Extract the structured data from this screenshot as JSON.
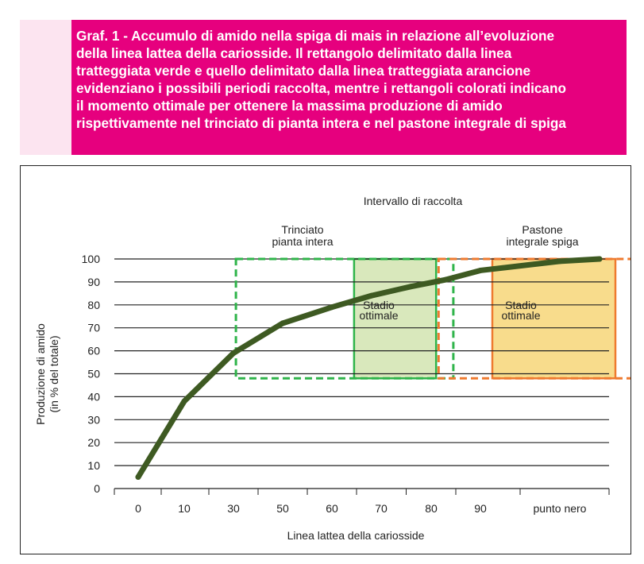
{
  "caption": {
    "text": "Graf. 1 - Accumulo di amido nella spiga di mais in relazione all’evoluzione\ndella linea lattea della cariosside. Il rettangolo delimitato dalla linea\ntratteggiata verde e quello delimitato dalla linea tratteggiata arancione\nevidenziano i possibili periodi raccolta, mentre i rettangoli colorati indicano\nil momento ottimale per ottenere la massima produzione di amido\nrispettivamente nel trinciato di pianta intera e nel pastone integrale di spiga"
  },
  "chart_data": {
    "type": "line",
    "title": "",
    "xlabel": "Linea lattea della cariosside",
    "ylabel_lines": [
      "Produzione di amido",
      "(in % del totale)"
    ],
    "x_categories": [
      "0",
      "10",
      "30",
      "50",
      "60",
      "70",
      "80",
      "90",
      "punto nero"
    ],
    "ylim": [
      0,
      100
    ],
    "y_ticks": [
      0,
      10,
      20,
      30,
      40,
      50,
      60,
      70,
      80,
      90,
      100
    ],
    "grid": "horizontal",
    "series": [
      {
        "color": "#3e5a22",
        "points": [
          {
            "x": 0,
            "y": 5
          },
          {
            "x": 1,
            "y": 38
          },
          {
            "x": 2,
            "y": 59
          },
          {
            "x": 3,
            "y": 72
          },
          {
            "x": 4,
            "y": 79
          },
          {
            "x": 4.8,
            "y": 84
          },
          {
            "x": 5.6,
            "y": 88
          },
          {
            "x": 6.3,
            "y": 91
          },
          {
            "x": 7,
            "y": 95
          },
          {
            "x": 8,
            "y": 99
          },
          {
            "x": 8.5,
            "y": 100
          }
        ]
      }
    ],
    "header_annotation": "Intervallo di raccolta",
    "regions": [
      {
        "kind": "dashed",
        "color": "#2fb44a",
        "x_range": [
          2.05,
          6.45
        ],
        "y_range": [
          48,
          100
        ],
        "label_lines": [
          "Trinciato",
          "pianta intera"
        ]
      },
      {
        "kind": "filled",
        "fill": "#d9e8bc",
        "stroke": "#2fb44a",
        "x_range": [
          4.45,
          6.1
        ],
        "y_range": [
          48,
          100
        ],
        "label_lines": [
          "Stadio",
          "ottimale"
        ]
      },
      {
        "kind": "dashed",
        "color": "#ee7a2f",
        "x_range": [
          6.15,
          9.05
        ],
        "y_range": [
          48,
          100
        ],
        "label_lines": [
          "Pastone",
          "integrale spiga"
        ]
      },
      {
        "kind": "filled",
        "fill": "#f8dc8c",
        "stroke": "#ee7a2f",
        "x_range": [
          7.15,
          8.7
        ],
        "y_range": [
          48,
          100
        ],
        "label_lines": [
          "Stadio",
          "ottimale"
        ]
      }
    ]
  }
}
